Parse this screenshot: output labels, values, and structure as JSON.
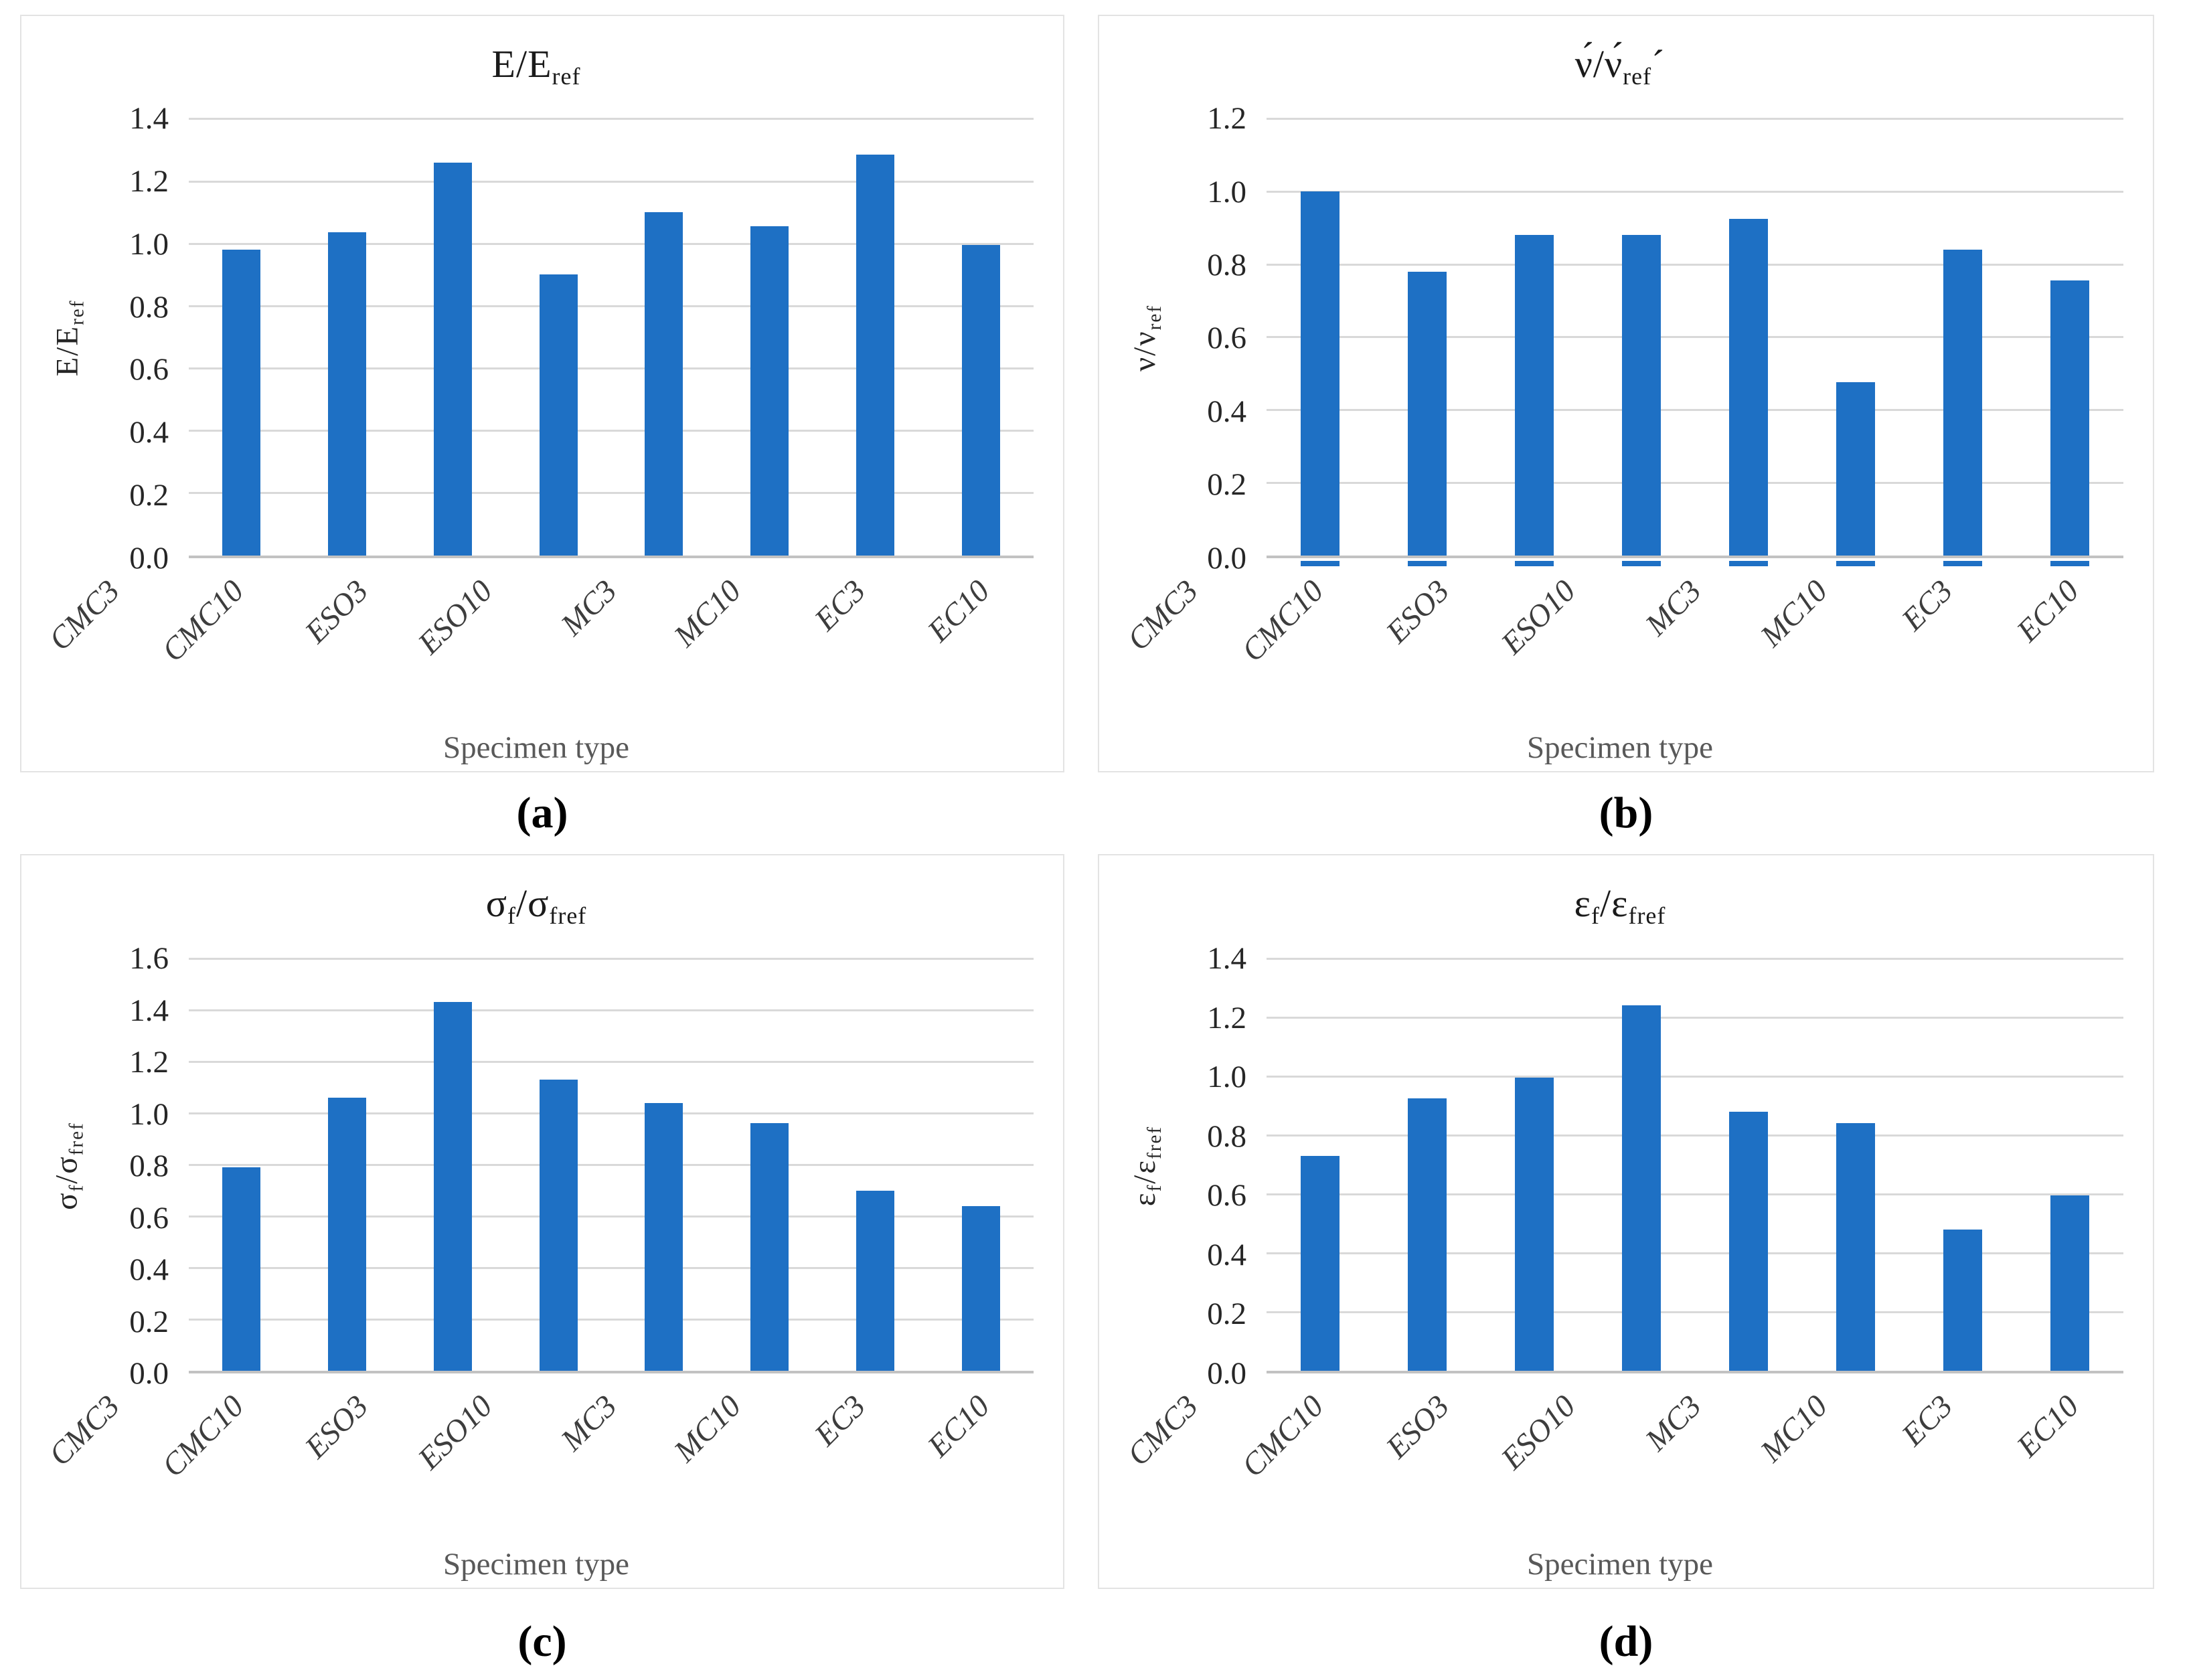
{
  "figure": {
    "background": "#ffffff",
    "captions": [
      "(a)",
      "(b)",
      "(c)",
      "(d)"
    ]
  },
  "colors": {
    "bar": "#1e70c4",
    "gridline": "#d9d9d9",
    "axis_line": "#c2c2c2",
    "tick_text": "#262626",
    "xlabel_text": "#595959"
  },
  "chart_data": [
    {
      "id": "a",
      "type": "bar",
      "caption": "(a)",
      "title_text": "E/E_ref",
      "title_parts": [
        [
          "t",
          "E/E"
        ],
        [
          "s",
          "ref"
        ]
      ],
      "ylabel_text": "E/E_ref",
      "ylabel_parts": [
        [
          "t",
          "E/E"
        ],
        [
          "s",
          "ref"
        ]
      ],
      "xlabel": "Specimen type",
      "categories": [
        "CMC3",
        "CMC10",
        "ESO3",
        "ESO10",
        "MC3",
        "MC10",
        "EC3",
        "EC10"
      ],
      "values": [
        0.98,
        1.035,
        1.26,
        0.9,
        1.1,
        1.055,
        1.285,
        0.995
      ],
      "ylim": [
        0,
        1.4
      ],
      "ystep": 0.2,
      "grid": true,
      "legend": "none",
      "baseline_strip": false
    },
    {
      "id": "b",
      "type": "bar",
      "caption": "(b)",
      "title_text": "ν́/ν́_refˊ",
      "title_parts": [
        [
          "t",
          "ν́/ν́"
        ],
        [
          "s",
          "ref"
        ],
        [
          "t",
          "ˊ"
        ]
      ],
      "ylabel_text": "ν/ν_ref",
      "ylabel_parts": [
        [
          "t",
          "ν/ν"
        ],
        [
          "s",
          "ref"
        ]
      ],
      "xlabel": "Specimen type",
      "categories": [
        "CMC3",
        "CMC10",
        "ESO3",
        "ESO10",
        "MC3",
        "MC10",
        "EC3",
        "EC10"
      ],
      "values": [
        1.0,
        0.78,
        0.88,
        0.88,
        0.925,
        0.475,
        0.84,
        0.755
      ],
      "ylim": [
        0,
        1.2
      ],
      "ystep": 0.2,
      "grid": true,
      "legend": "none",
      "baseline_strip": true
    },
    {
      "id": "c",
      "type": "bar",
      "caption": "(c)",
      "title_text": "σ_f/σ_fref",
      "title_parts": [
        [
          "t",
          "σ"
        ],
        [
          "s",
          "f"
        ],
        [
          "t",
          "/σ"
        ],
        [
          "s",
          "fref"
        ]
      ],
      "ylabel_text": "σ_f/σ_fref",
      "ylabel_parts": [
        [
          "t",
          "σ"
        ],
        [
          "s",
          "f"
        ],
        [
          "t",
          "/σ"
        ],
        [
          "s",
          "fref"
        ]
      ],
      "xlabel": "Specimen type",
      "categories": [
        "CMC3",
        "CMC10",
        "ESO3",
        "ESO10",
        "MC3",
        "MC10",
        "EC3",
        "EC10"
      ],
      "values": [
        0.79,
        1.06,
        1.43,
        1.13,
        1.04,
        0.96,
        0.7,
        0.64
      ],
      "ylim": [
        0,
        1.6
      ],
      "ystep": 0.2,
      "grid": true,
      "legend": "none",
      "baseline_strip": false
    },
    {
      "id": "d",
      "type": "bar",
      "caption": "(d)",
      "title_text": "ε_f/ε_fref",
      "title_parts": [
        [
          "t",
          "ε"
        ],
        [
          "s",
          "f"
        ],
        [
          "t",
          "/ε"
        ],
        [
          "s",
          "fref"
        ]
      ],
      "ylabel_text": "ε_f/ε_fref",
      "ylabel_parts": [
        [
          "t",
          "ε"
        ],
        [
          "s",
          "f"
        ],
        [
          "t",
          "/ε"
        ],
        [
          "s",
          "fref"
        ]
      ],
      "xlabel": "Specimen type",
      "categories": [
        "CMC3",
        "CMC10",
        "ESO3",
        "ESO10",
        "MC3",
        "MC10",
        "EC3",
        "EC10"
      ],
      "values": [
        0.73,
        0.925,
        0.995,
        1.24,
        0.88,
        0.84,
        0.48,
        0.595
      ],
      "ylim": [
        0,
        1.4
      ],
      "ystep": 0.2,
      "grid": true,
      "legend": "none",
      "baseline_strip": false
    }
  ],
  "bar_geometry": {
    "bar_width_pct": 4.5
  }
}
